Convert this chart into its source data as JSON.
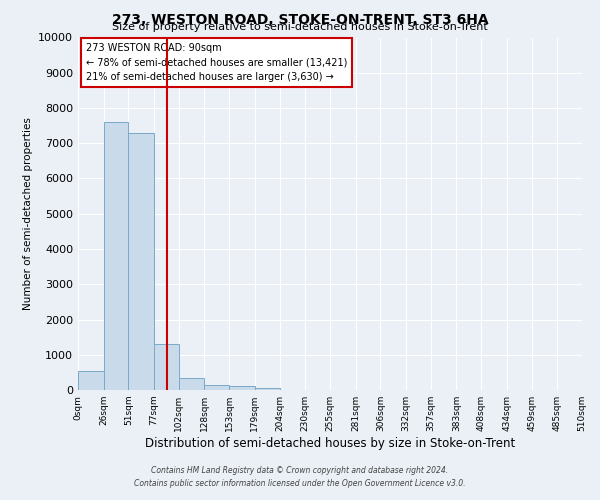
{
  "title": "273, WESTON ROAD, STOKE-ON-TRENT, ST3 6HA",
  "subtitle": "Size of property relative to semi-detached houses in Stoke-on-Trent",
  "xlabel": "Distribution of semi-detached houses by size in Stoke-on-Trent",
  "ylabel": "Number of semi-detached properties",
  "footer_line1": "Contains HM Land Registry data © Crown copyright and database right 2024.",
  "footer_line2": "Contains public sector information licensed under the Open Government Licence v3.0.",
  "bar_edges": [
    0,
    26,
    51,
    77,
    102,
    128,
    153,
    179,
    204,
    230,
    255,
    281,
    306,
    332,
    357,
    383,
    408,
    434,
    459,
    485,
    510
  ],
  "bar_heights": [
    550,
    7600,
    7300,
    1300,
    350,
    150,
    100,
    70,
    0,
    0,
    0,
    0,
    0,
    0,
    0,
    0,
    0,
    0,
    0,
    0
  ],
  "bar_color": "#c9daea",
  "bar_edge_color": "#7aaac8",
  "property_size": 90,
  "vline_color": "#cc0000",
  "annotation_box_edge": "#cc0000",
  "annotation_title": "273 WESTON ROAD: 90sqm",
  "annotation_line1": "← 78% of semi-detached houses are smaller (13,421)",
  "annotation_line2": "21% of semi-detached houses are larger (3,630) →",
  "ylim": [
    0,
    10000
  ],
  "yticks": [
    0,
    1000,
    2000,
    3000,
    4000,
    5000,
    6000,
    7000,
    8000,
    9000,
    10000
  ],
  "xtick_labels": [
    "0sqm",
    "26sqm",
    "51sqm",
    "77sqm",
    "102sqm",
    "128sqm",
    "153sqm",
    "179sqm",
    "204sqm",
    "230sqm",
    "255sqm",
    "281sqm",
    "306sqm",
    "332sqm",
    "357sqm",
    "383sqm",
    "408sqm",
    "434sqm",
    "459sqm",
    "485sqm",
    "510sqm"
  ],
  "bg_color": "#eaf0f6",
  "plot_bg_color": "#eaf0f6",
  "grid_color": "#ffffff"
}
